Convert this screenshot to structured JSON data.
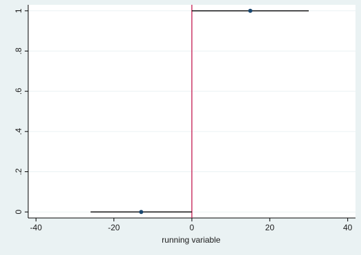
{
  "chart_data": {
    "type": "scatter",
    "title": "",
    "xlabel": "running variable",
    "ylabel": "",
    "xlim": [
      -42,
      42
    ],
    "ylim": [
      -0.03,
      1.03
    ],
    "x_ticks": [
      -40,
      -20,
      0,
      20,
      40
    ],
    "x_tick_labels": [
      "-40",
      "-20",
      "0",
      "20",
      "40"
    ],
    "y_ticks": [
      0,
      0.2,
      0.4,
      0.6,
      0.8,
      1
    ],
    "y_tick_labels": [
      "0",
      ".2",
      ".4",
      ".6",
      ".8",
      "1"
    ],
    "grid": "horizontal",
    "cutoff": 0,
    "series": [
      {
        "points": [
          {
            "x": -13,
            "y": 0,
            "x_from": -26,
            "x_to": 0
          },
          {
            "x": 15,
            "y": 1,
            "x_from": 0,
            "x_to": 30
          }
        ]
      }
    ],
    "colors": {
      "outer_background": "#eaf2f3",
      "plot_background": "#ffffff",
      "grid": "#eaf2f3",
      "axis": "#000000",
      "cutoff_line": "#c4174f",
      "segment": "#000000",
      "point": "#1a476f"
    }
  }
}
